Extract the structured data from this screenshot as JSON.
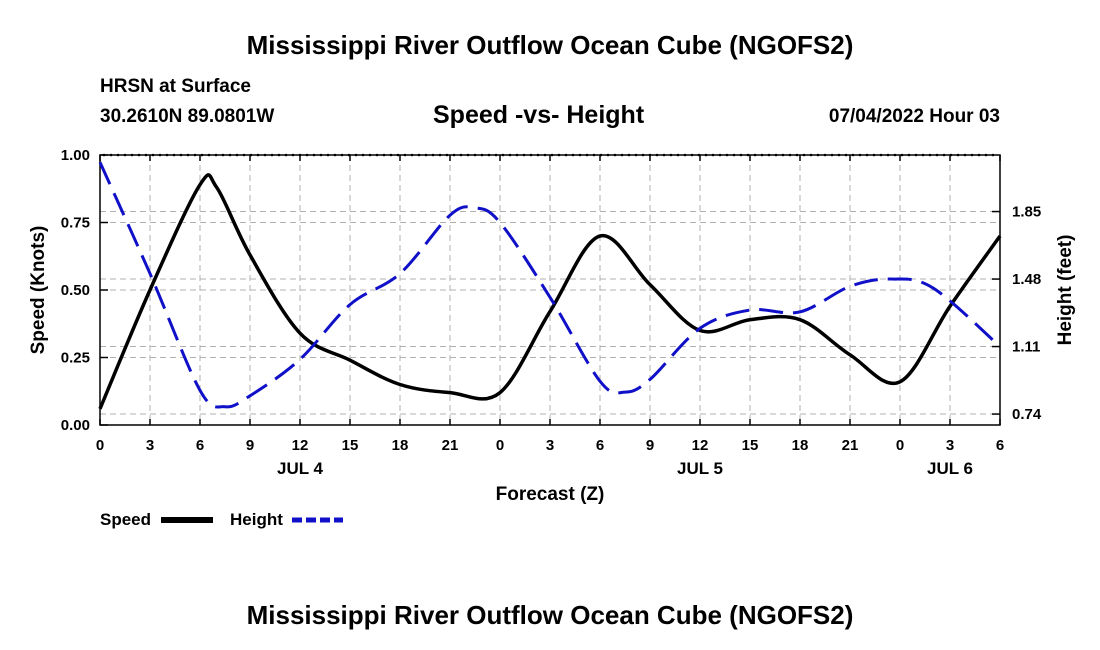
{
  "page": {
    "title_top": "Mississippi River Outflow Ocean Cube (NGOFS2)",
    "title_bottom": "Mississippi River Outflow Ocean Cube (NGOFS2)",
    "station": "HRSN at Surface",
    "coords": "30.2610N  89.0801W",
    "chart_title": "Speed -vs- Height",
    "datetime": "07/04/2022 Hour 03"
  },
  "legend": {
    "speed": "Speed",
    "height": "Height"
  },
  "colors": {
    "speed": "#000000",
    "height": "#1010c8",
    "grid": "#b0b0b0"
  },
  "chart_data": {
    "type": "line",
    "title": "Speed -vs- Height",
    "xlabel": "Forecast (Z)",
    "ylabel": "Speed (Knots)",
    "y2label": "Height (feet)",
    "x_ticks": [
      "0",
      "3",
      "6",
      "9",
      "12",
      "15",
      "18",
      "21",
      "0",
      "3",
      "6",
      "9",
      "12",
      "15",
      "18",
      "21",
      "0",
      "3",
      "6"
    ],
    "date_labels": [
      {
        "label": "JUL 4",
        "hour": 12
      },
      {
        "label": "JUL 5",
        "hour": 36
      },
      {
        "label": "JUL 6",
        "hour": 51
      }
    ],
    "xlim": [
      0,
      54
    ],
    "ylim": [
      0,
      1
    ],
    "y_ticks": [
      "0.00",
      "0.25",
      "0.50",
      "0.75",
      "1.00"
    ],
    "y2lim": [
      0.68,
      2.16
    ],
    "y2_ticks": [
      "0.74",
      "1.11",
      "1.48",
      "1.85"
    ],
    "series": [
      {
        "name": "Speed",
        "axis": "left",
        "x": [
          0,
          3,
          6,
          7,
          9,
          12,
          15,
          18,
          21,
          24,
          27,
          30,
          33,
          36,
          39,
          42,
          45,
          48,
          51,
          54
        ],
        "values": [
          0.06,
          0.5,
          0.89,
          0.88,
          0.63,
          0.34,
          0.24,
          0.15,
          0.12,
          0.12,
          0.42,
          0.7,
          0.52,
          0.35,
          0.39,
          0.39,
          0.26,
          0.16,
          0.44,
          0.7
        ]
      },
      {
        "name": "Height",
        "axis": "right",
        "x": [
          0,
          3,
          6,
          7.5,
          9,
          12,
          15,
          18,
          21,
          22.5,
          24,
          27,
          30,
          31.5,
          33,
          36,
          39,
          42,
          45,
          47.5,
          50,
          54
        ],
        "values": [
          2.12,
          1.51,
          0.87,
          0.78,
          0.84,
          1.04,
          1.34,
          1.51,
          1.83,
          1.87,
          1.79,
          1.38,
          0.92,
          0.86,
          0.93,
          1.21,
          1.31,
          1.3,
          1.44,
          1.48,
          1.43,
          1.11
        ]
      }
    ]
  }
}
